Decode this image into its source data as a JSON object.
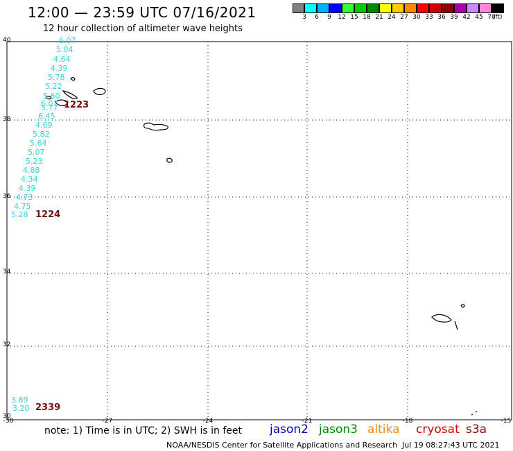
{
  "header": {
    "title": "12:00 — 23:59 UTC 07/16/2021",
    "subtitle": "12 hour collection of altimeter wave heights"
  },
  "colorbar": {
    "labels": [
      "3",
      "6",
      "9",
      "12",
      "15",
      "18",
      "21",
      "24",
      "27",
      "30",
      "33",
      "36",
      "39",
      "42",
      "45",
      "70"
    ],
    "unit": "(ft)",
    "colors": [
      "#808080",
      "#00ffff",
      "#00b0ff",
      "#0000ff",
      "#33ff33",
      "#00cc00",
      "#008800",
      "#ffff00",
      "#ffcc00",
      "#ff8800",
      "#ff0000",
      "#cc0000",
      "#880000",
      "#aa00aa",
      "#cc88ff",
      "#ff88dd",
      "#000000"
    ]
  },
  "map": {
    "lat_labels": [
      "40",
      "38",
      "36",
      "34",
      "32",
      "30"
    ],
    "lon_labels": [
      "-30",
      "-27",
      "-24",
      "-21",
      "-18",
      "-15"
    ],
    "grid": true
  },
  "swh_values": {
    "track1": [
      "6.07",
      "5.04",
      "4.64",
      "4.39",
      "5.78",
      "5.22",
      "5.60",
      "6.07",
      "5.77",
      "6.45",
      "4.69",
      "5.82",
      "5.64",
      "5.07",
      "5.23",
      "4.88",
      "4.34",
      "4.39",
      "4.73",
      "4.75",
      "5.28"
    ],
    "track2": [
      "3.89",
      "3.20"
    ]
  },
  "pass_times": [
    "1223",
    "1224",
    "2339"
  ],
  "footer": {
    "note": "note:  1) Time is in UTC;  2) SWH is in feet",
    "satellites": [
      {
        "name": "jason2",
        "color": "#0000cc"
      },
      {
        "name": "jason3",
        "color": "#008800"
      },
      {
        "name": "altika",
        "color": "#ff8800"
      },
      {
        "name": "cryosat",
        "color": "#cc0000"
      },
      {
        "name": "s3a",
        "color": "#880000"
      }
    ],
    "credit": "NOAA/NESDIS Center for Satellite Applications and Research",
    "timestamp": "Jul 19 08:27:43 UTC 2021"
  }
}
